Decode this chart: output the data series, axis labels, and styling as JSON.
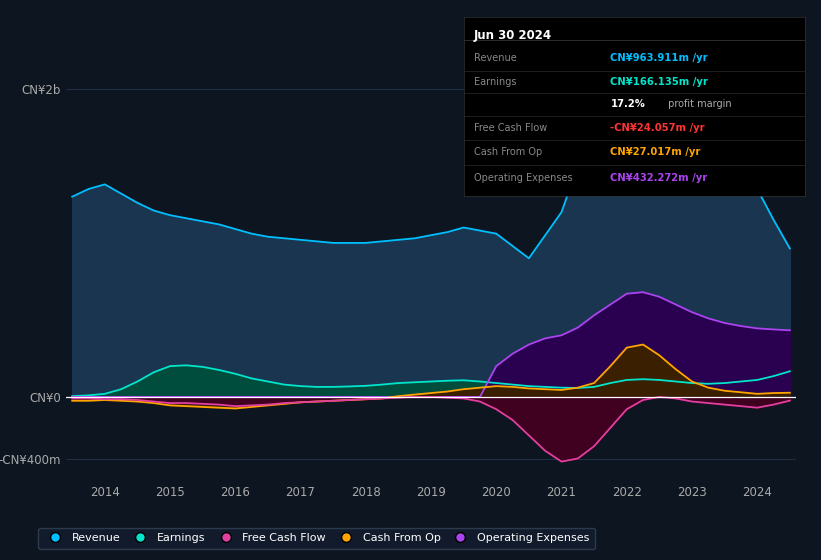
{
  "background_color": "#0d1520",
  "chart_bg_color": "#0d1520",
  "ylabel_top": "CN¥2b",
  "ylabel_zero": "CN¥0",
  "ylabel_bottom": "-CN¥400m",
  "x_ticks": [
    2014,
    2015,
    2016,
    2017,
    2018,
    2019,
    2020,
    2021,
    2022,
    2023,
    2024
  ],
  "ylim": [
    -550000000,
    2250000000
  ],
  "legend": [
    {
      "label": "Revenue",
      "color": "#00bfff"
    },
    {
      "label": "Earnings",
      "color": "#00e5cc"
    },
    {
      "label": "Free Cash Flow",
      "color": "#e040a0"
    },
    {
      "label": "Cash From Op",
      "color": "#ffa500"
    },
    {
      "label": "Operating Expenses",
      "color": "#aa44ee"
    }
  ],
  "revenue": {
    "x": [
      2013.5,
      2013.75,
      2014.0,
      2014.25,
      2014.5,
      2014.75,
      2015.0,
      2015.25,
      2015.5,
      2015.75,
      2016.0,
      2016.25,
      2016.5,
      2016.75,
      2017.0,
      2017.25,
      2017.5,
      2017.75,
      2018.0,
      2018.25,
      2018.5,
      2018.75,
      2019.0,
      2019.25,
      2019.5,
      2019.75,
      2020.0,
      2020.25,
      2020.5,
      2020.75,
      2021.0,
      2021.25,
      2021.5,
      2021.75,
      2022.0,
      2022.25,
      2022.5,
      2022.75,
      2023.0,
      2023.25,
      2023.5,
      2023.75,
      2024.0,
      2024.25,
      2024.5
    ],
    "y": [
      1300000000,
      1350000000,
      1380000000,
      1320000000,
      1260000000,
      1210000000,
      1180000000,
      1160000000,
      1140000000,
      1120000000,
      1090000000,
      1060000000,
      1040000000,
      1030000000,
      1020000000,
      1010000000,
      1000000000,
      1000000000,
      1000000000,
      1010000000,
      1020000000,
      1030000000,
      1050000000,
      1070000000,
      1100000000,
      1080000000,
      1060000000,
      980000000,
      900000000,
      1050000000,
      1200000000,
      1500000000,
      1800000000,
      2000000000,
      2050000000,
      1950000000,
      1850000000,
      1780000000,
      1700000000,
      1650000000,
      1600000000,
      1500000000,
      1350000000,
      1150000000,
      963911000
    ],
    "color": "#00bfff",
    "fill_color": "#1a3550",
    "alpha": 1.0
  },
  "earnings": {
    "x": [
      2013.5,
      2013.75,
      2014.0,
      2014.25,
      2014.5,
      2014.75,
      2015.0,
      2015.25,
      2015.5,
      2015.75,
      2016.0,
      2016.25,
      2016.5,
      2016.75,
      2017.0,
      2017.25,
      2017.5,
      2017.75,
      2018.0,
      2018.25,
      2018.5,
      2018.75,
      2019.0,
      2019.25,
      2019.5,
      2019.75,
      2020.0,
      2020.25,
      2020.5,
      2020.75,
      2021.0,
      2021.25,
      2021.5,
      2021.75,
      2022.0,
      2022.25,
      2022.5,
      2022.75,
      2023.0,
      2023.25,
      2023.5,
      2023.75,
      2024.0,
      2024.25,
      2024.5
    ],
    "y": [
      5000000,
      10000000,
      20000000,
      50000000,
      100000000,
      160000000,
      200000000,
      205000000,
      195000000,
      175000000,
      150000000,
      120000000,
      100000000,
      80000000,
      70000000,
      65000000,
      65000000,
      68000000,
      72000000,
      80000000,
      90000000,
      95000000,
      100000000,
      105000000,
      108000000,
      100000000,
      90000000,
      80000000,
      70000000,
      65000000,
      60000000,
      58000000,
      65000000,
      90000000,
      110000000,
      115000000,
      110000000,
      100000000,
      90000000,
      85000000,
      90000000,
      100000000,
      110000000,
      135000000,
      166135000
    ],
    "color": "#00e5cc",
    "fill_color": "#004d3d",
    "alpha": 0.85
  },
  "free_cash_flow": {
    "x": [
      2013.5,
      2013.75,
      2014.0,
      2014.25,
      2014.5,
      2014.75,
      2015.0,
      2015.25,
      2015.5,
      2015.75,
      2016.0,
      2016.25,
      2016.5,
      2016.75,
      2017.0,
      2017.25,
      2017.5,
      2017.75,
      2018.0,
      2018.25,
      2018.5,
      2018.75,
      2019.0,
      2019.25,
      2019.5,
      2019.75,
      2020.0,
      2020.25,
      2020.5,
      2020.75,
      2021.0,
      2021.25,
      2021.5,
      2021.75,
      2022.0,
      2022.25,
      2022.5,
      2022.75,
      2023.0,
      2023.25,
      2023.5,
      2023.75,
      2024.0,
      2024.25,
      2024.5
    ],
    "y": [
      -10000000,
      -10000000,
      -15000000,
      -15000000,
      -20000000,
      -30000000,
      -40000000,
      -40000000,
      -45000000,
      -50000000,
      -60000000,
      -55000000,
      -50000000,
      -40000000,
      -35000000,
      -30000000,
      -25000000,
      -20000000,
      -15000000,
      -10000000,
      -5000000,
      0,
      0,
      -5000000,
      -10000000,
      -30000000,
      -80000000,
      -150000000,
      -250000000,
      -350000000,
      -420000000,
      -400000000,
      -320000000,
      -200000000,
      -80000000,
      -20000000,
      0,
      -10000000,
      -30000000,
      -40000000,
      -50000000,
      -60000000,
      -70000000,
      -50000000,
      -24057000
    ],
    "color": "#e040a0",
    "fill_color": "#400020",
    "alpha": 0.75
  },
  "cash_from_op": {
    "x": [
      2013.5,
      2013.75,
      2014.0,
      2014.25,
      2014.5,
      2014.75,
      2015.0,
      2015.25,
      2015.5,
      2015.75,
      2016.0,
      2016.25,
      2016.5,
      2016.75,
      2017.0,
      2017.25,
      2017.5,
      2017.75,
      2018.0,
      2018.25,
      2018.5,
      2018.75,
      2019.0,
      2019.25,
      2019.5,
      2019.75,
      2020.0,
      2020.25,
      2020.5,
      2020.75,
      2021.0,
      2021.25,
      2021.5,
      2021.75,
      2022.0,
      2022.25,
      2022.5,
      2022.75,
      2023.0,
      2023.25,
      2023.5,
      2023.75,
      2024.0,
      2024.25,
      2024.5
    ],
    "y": [
      -25000000,
      -25000000,
      -20000000,
      -25000000,
      -30000000,
      -40000000,
      -55000000,
      -60000000,
      -65000000,
      -70000000,
      -75000000,
      -65000000,
      -55000000,
      -45000000,
      -35000000,
      -30000000,
      -25000000,
      -20000000,
      -15000000,
      -10000000,
      5000000,
      15000000,
      25000000,
      35000000,
      50000000,
      60000000,
      70000000,
      65000000,
      55000000,
      50000000,
      45000000,
      60000000,
      90000000,
      200000000,
      320000000,
      340000000,
      270000000,
      180000000,
      100000000,
      60000000,
      40000000,
      30000000,
      20000000,
      25000000,
      27017000
    ],
    "color": "#ffa500",
    "fill_color": "#3a2000",
    "alpha": 0.7
  },
  "op_expenses": {
    "x": [
      2013.5,
      2013.75,
      2014.0,
      2014.25,
      2014.5,
      2014.75,
      2015.0,
      2015.25,
      2015.5,
      2015.75,
      2016.0,
      2016.25,
      2016.5,
      2016.75,
      2017.0,
      2017.25,
      2017.5,
      2017.75,
      2018.0,
      2018.25,
      2018.5,
      2018.75,
      2019.0,
      2019.25,
      2019.5,
      2019.75,
      2020.0,
      2020.25,
      2020.5,
      2020.75,
      2021.0,
      2021.25,
      2021.5,
      2021.75,
      2022.0,
      2022.25,
      2022.5,
      2022.75,
      2023.0,
      2023.25,
      2023.5,
      2023.75,
      2024.0,
      2024.25,
      2024.5
    ],
    "y": [
      0,
      0,
      0,
      0,
      0,
      0,
      0,
      0,
      0,
      0,
      0,
      0,
      0,
      0,
      0,
      0,
      0,
      0,
      0,
      0,
      0,
      0,
      0,
      0,
      0,
      0,
      200000000,
      280000000,
      340000000,
      380000000,
      400000000,
      450000000,
      530000000,
      600000000,
      670000000,
      680000000,
      650000000,
      600000000,
      550000000,
      510000000,
      480000000,
      460000000,
      445000000,
      438000000,
      432272000
    ],
    "color": "#aa44ee",
    "fill_color": "#2a0050",
    "alpha": 0.8
  },
  "info_box": {
    "date": "Jun 30 2024",
    "revenue_label": "Revenue",
    "revenue_value": "CN¥963.911m /yr",
    "revenue_color": "#00bfff",
    "earnings_label": "Earnings",
    "earnings_value": "CN¥166.135m /yr",
    "earnings_color": "#00e5cc",
    "margin_text": "17.2%",
    "margin_suffix": " profit margin",
    "fcf_label": "Free Cash Flow",
    "fcf_value": "-CN¥24.057m /yr",
    "fcf_color": "#ff3333",
    "cfo_label": "Cash From Op",
    "cfo_value": "CN¥27.017m /yr",
    "cfo_color": "#ffa500",
    "oe_label": "Operating Expenses",
    "oe_value": "CN¥432.272m /yr",
    "oe_color": "#aa44ee"
  }
}
